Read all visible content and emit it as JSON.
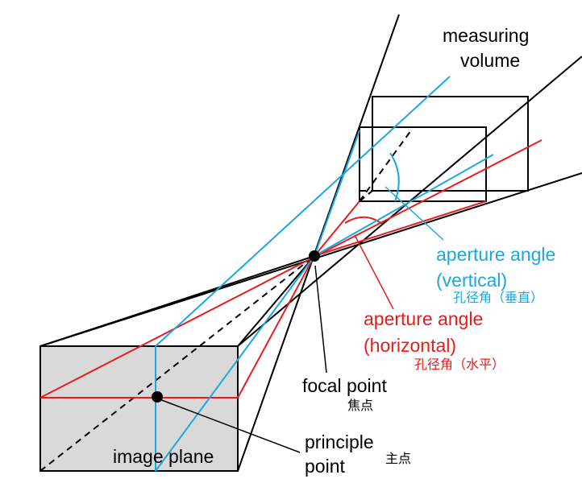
{
  "colors": {
    "black": "#000000",
    "cyan": "#18a9e3",
    "red": "#e81c1c",
    "plane_fill": "#d9d9d9"
  },
  "labels": {
    "measuring_volume_line1": "measuring",
    "measuring_volume_line2": "volume",
    "aperture_vertical_line1": "aperture angle",
    "aperture_vertical_line2": "(vertical)",
    "aperture_vertical_zh": "孔径角（垂直）",
    "aperture_horizontal_line1": "aperture angle",
    "aperture_horizontal_line2": "(horizontal)",
    "aperture_horizontal_zh": "孔径角（水平）",
    "focal_point": "focal point",
    "focal_point_zh": "焦点",
    "principle_point_line1": "principle",
    "principle_point_line2": "point",
    "principle_point_zh": "主点",
    "image_plane": "image plane"
  }
}
